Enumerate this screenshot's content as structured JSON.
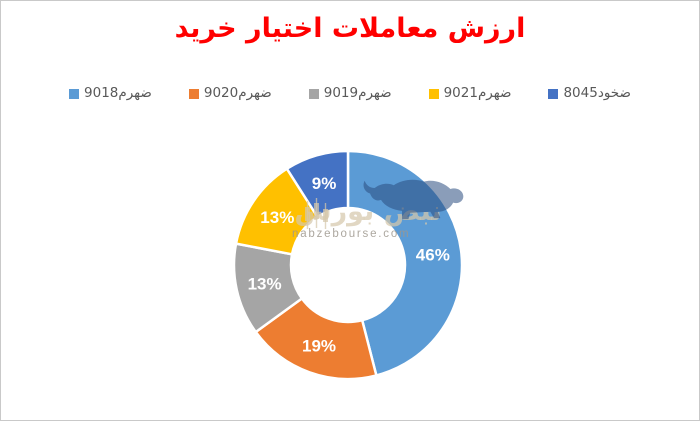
{
  "window": {
    "background": "#ffffff",
    "border_color": "#c9c9c9"
  },
  "title": {
    "text": "ارزش معاملات اختیار خرید",
    "color": "#ff0000"
  },
  "watermark": {
    "site_fa": "نبض بورس",
    "site_en": "nabzebourse.com",
    "bull_icon": "bull-silhouette",
    "logo_icon": "candlestick-logo",
    "fa_color": "rgba(213,200,172,0.72)",
    "en_color": "rgba(158,152,142,0.85)",
    "bull_color": "rgba(42,76,128,0.55)"
  },
  "chart_data": {
    "type": "pie",
    "subtype": "donut",
    "title": "ارزش معاملات اختیار خرید",
    "unit": "%",
    "start_angle_deg": 0,
    "direction": "clockwise",
    "inner_radius_ratio": 0.5,
    "legend_position": "top",
    "categories": [
      "ضهرم9018",
      "ضهرم9020",
      "ضهرم9019",
      "ضهرم9021",
      "ضخود8045"
    ],
    "values": [
      46,
      19,
      13,
      13,
      9
    ],
    "labels": [
      "46%",
      "19%",
      "13%",
      "13%",
      "9%"
    ],
    "colors": [
      "#5B9BD5",
      "#ED7D31",
      "#A5A5A5",
      "#FFC000",
      "#4472C4"
    ],
    "label_color": "#ffffff",
    "slice_border_color": "#ffffff",
    "legend_text_color": "#595959"
  }
}
